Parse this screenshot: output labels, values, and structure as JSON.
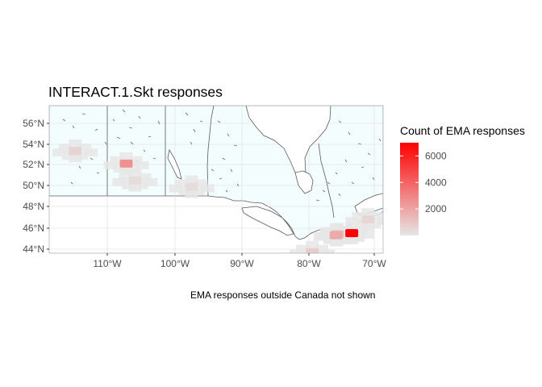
{
  "title": "INTERACT.1.Skt responses",
  "caption": "EMA responses outside Canada not shown",
  "axes": {
    "x_ticks": [
      "110°W",
      "100°W",
      "90°W",
      "80°W",
      "70°W"
    ],
    "y_ticks": [
      "56°N",
      "54°N",
      "52°N",
      "50°N",
      "48°N",
      "46°N",
      "44°N"
    ]
  },
  "legend": {
    "title": "Count of EMA responses",
    "ticks": [
      "6000",
      "4000",
      "2000"
    ],
    "tick_values": [
      6000,
      4000,
      2000
    ],
    "min_value": 0,
    "max_value": 7000,
    "color_low": "#e6e6e6",
    "color_high": "#ff0000"
  },
  "colors": {
    "canada_fill": "#f4fdfd",
    "grid": "#dcdcdc",
    "border": "#5a5a5a",
    "panel_border": "#b3b3b3"
  },
  "chart_data": {
    "type": "heatmap",
    "title": "INTERACT.1.Skt responses",
    "xlim": [
      -118,
      -69
    ],
    "ylim": [
      43.6,
      57.6
    ],
    "hex_bins": [
      {
        "lon": -114.2,
        "lat": 53.3,
        "count": 600
      },
      {
        "lon": -106.7,
        "lat": 52.1,
        "count": 2600
      },
      {
        "lon": -105.4,
        "lat": 50.5,
        "count": 300
      },
      {
        "lon": -97.1,
        "lat": 49.9,
        "count": 300
      },
      {
        "lon": -79.4,
        "lat": 43.7,
        "count": 800
      },
      {
        "lon": -75.7,
        "lat": 45.4,
        "count": 1200
      },
      {
        "lon": -73.6,
        "lat": 45.5,
        "count": 7000
      },
      {
        "lon": -71.2,
        "lat": 46.8,
        "count": 500
      },
      {
        "lon": -75.9,
        "lat": 45.3,
        "count": 1800
      }
    ]
  }
}
